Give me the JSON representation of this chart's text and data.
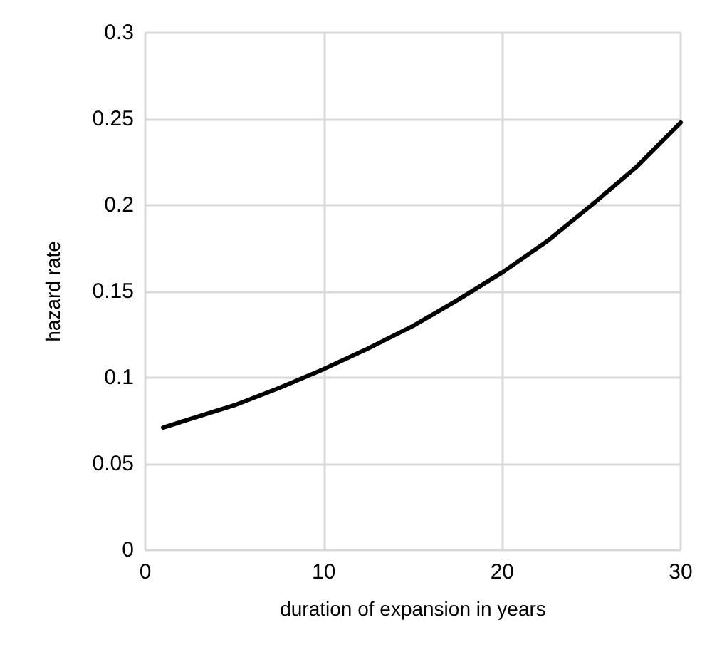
{
  "chart_data": {
    "type": "line",
    "xlabel": "duration of expansion in years",
    "ylabel": "hazard rate",
    "x": [
      1,
      2.5,
      5,
      7.5,
      10,
      12.5,
      15,
      17.5,
      20,
      22.5,
      25,
      27.5,
      30
    ],
    "series": [
      {
        "color": "#000000",
        "values": [
          0.071,
          0.076,
          0.084,
          0.094,
          0.105,
          0.117,
          0.13,
          0.145,
          0.161,
          0.179,
          0.2,
          0.222,
          0.248
        ]
      }
    ],
    "xlim": [
      0,
      30
    ],
    "xticks": [
      0,
      10,
      20,
      30
    ],
    "ylim": [
      0,
      0.3
    ],
    "yticks": [
      0,
      0.05,
      0.1,
      0.15,
      0.2,
      0.25,
      0.3
    ],
    "grid": true,
    "marker": "none",
    "line_style": "solid"
  }
}
